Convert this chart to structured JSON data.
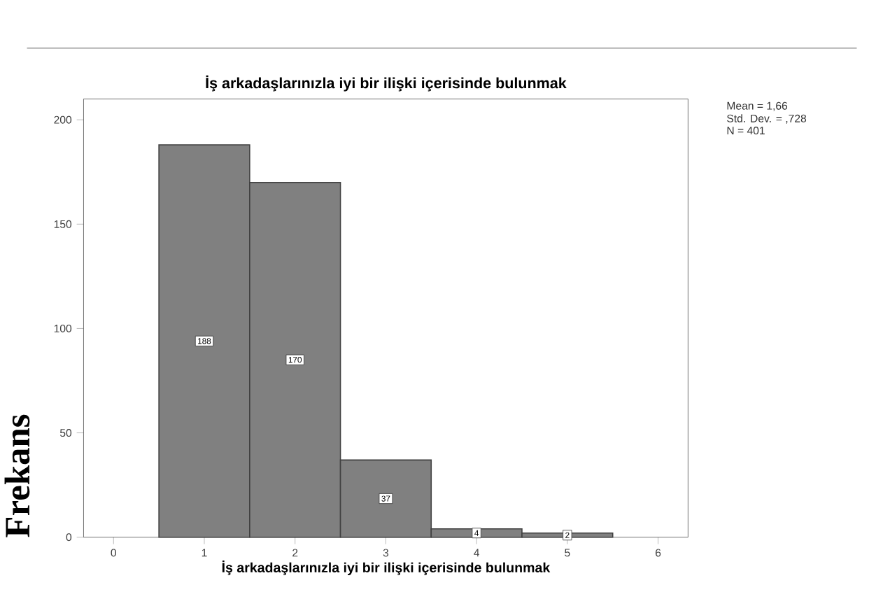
{
  "chart_data": {
    "type": "histogram",
    "title": "İş arkadaşlarınızla iyi bir ilişki içerisinde bulunmak",
    "xlabel": "İş arkadaşlarınızla iyi bir ilişki içerisinde bulunmak",
    "ylabel": "Frekans",
    "bins": [
      0.5,
      1.5,
      2.5,
      3.5,
      4.5,
      5.5
    ],
    "values": [
      188,
      170,
      37,
      4,
      2
    ],
    "color": "#808080",
    "data_labels": true,
    "xlim": [
      -0.33,
      6.33
    ],
    "ylim": [
      0,
      210
    ],
    "xticks": [
      0,
      1,
      2,
      3,
      4,
      5,
      6
    ],
    "yticks": [
      0,
      50,
      100,
      150,
      200
    ],
    "grid": false,
    "annotations": [
      "Mean = 1,66",
      "Std. Dev. = ,728",
      "N = 401"
    ]
  }
}
